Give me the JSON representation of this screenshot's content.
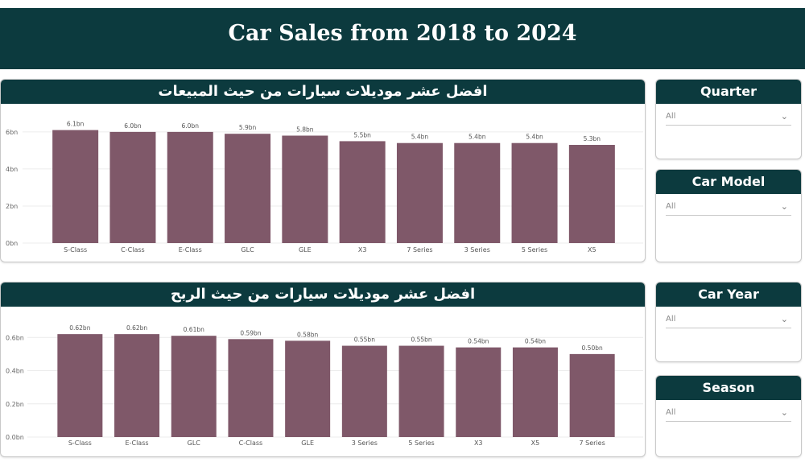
{
  "header": {
    "title": "Car Sales from 2018 to 2024"
  },
  "charts": {
    "sales": {
      "title": "افضل عشر موديلات سيارات من حيث المبيعات"
    },
    "profit": {
      "title": "افضل عشر موديلات سيارات من حيث الربح"
    }
  },
  "slicers": {
    "quarter": {
      "title": "Quarter",
      "value": "All"
    },
    "car_model": {
      "title": "Car Model",
      "value": "All"
    },
    "car_year": {
      "title": "Car Year",
      "value": "All"
    },
    "season": {
      "title": "Season",
      "value": "All"
    }
  },
  "colors": {
    "header": "#0c3a3e",
    "bar": "#7f5869"
  },
  "icons": {
    "dropdown": "chevron-down-icon"
  },
  "chart_data": [
    {
      "type": "bar",
      "title": "افضل عشر موديلات سيارات من حيث المبيعات",
      "categories": [
        "S-Class",
        "C-Class",
        "E-Class",
        "GLC",
        "GLE",
        "X3",
        "7 Series",
        "3 Series",
        "5 Series",
        "X5"
      ],
      "values": [
        6.1,
        6.0,
        6.0,
        5.9,
        5.8,
        5.5,
        5.4,
        5.4,
        5.4,
        5.3
      ],
      "data_labels": [
        "6.1bn",
        "6.0bn",
        "6.0bn",
        "5.9bn",
        "5.8bn",
        "5.5bn",
        "5.4bn",
        "5.4bn",
        "5.4bn",
        "5.3bn"
      ],
      "yticks": [
        0,
        2,
        4,
        6
      ],
      "ytick_labels": [
        "0bn",
        "2bn",
        "4bn",
        "6bn"
      ],
      "ylim": [
        0,
        6.3
      ],
      "grid": true
    },
    {
      "type": "bar",
      "title": "افضل عشر موديلات سيارات من حيث الربح",
      "categories": [
        "S-Class",
        "E-Class",
        "GLC",
        "C-Class",
        "GLE",
        "3 Series",
        "5 Series",
        "X3",
        "X5",
        "7 Series"
      ],
      "values": [
        0.62,
        0.62,
        0.61,
        0.59,
        0.58,
        0.55,
        0.55,
        0.54,
        0.54,
        0.5
      ],
      "data_labels": [
        "0.62bn",
        "0.62bn",
        "0.61bn",
        "0.59bn",
        "0.58bn",
        "0.55bn",
        "0.55bn",
        "0.54bn",
        "0.54bn",
        "0.50bn"
      ],
      "yticks": [
        0,
        0.2,
        0.4,
        0.6
      ],
      "ytick_labels": [
        "0.0bn",
        "0.2bn",
        "0.4bn",
        "0.6bn"
      ],
      "ylim": [
        0,
        0.64
      ],
      "grid": true
    }
  ]
}
